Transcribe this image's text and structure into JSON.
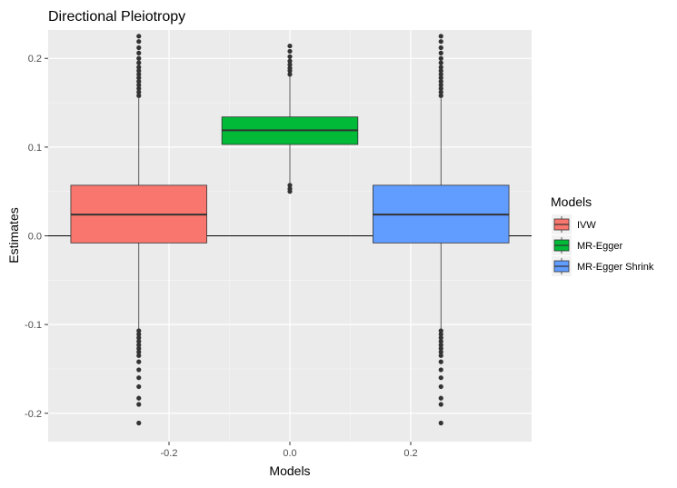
{
  "chart_data": {
    "type": "boxplot",
    "title": "Directional Pleiotropy",
    "xlabel": "Models",
    "ylabel": "Estimates",
    "xlim": [
      -0.4,
      0.4
    ],
    "ylim": [
      -0.232,
      0.232
    ],
    "x_ticks": [
      -0.2,
      0.0,
      0.2
    ],
    "x_tick_labels": [
      "-0.2",
      "0.0",
      "0.2"
    ],
    "y_ticks": [
      -0.2,
      -0.1,
      0.0,
      0.1,
      0.2
    ],
    "y_tick_labels": [
      "-0.2",
      "-0.1",
      "0.0",
      "0.1",
      "0.2"
    ],
    "reference_line_y": 0,
    "grid": true,
    "panel_background": "#EBEBEB",
    "legend": {
      "title": "Models",
      "position": "right",
      "entries": [
        "IVW",
        "MR-Egger",
        "MR-Egger Shrink"
      ]
    },
    "series": [
      {
        "name": "IVW",
        "x": -0.25,
        "width": 0.225,
        "color": "#F8766D",
        "q1": -0.008,
        "median": 0.024,
        "q3": 0.057,
        "whisker_low": -0.105,
        "whisker_high": 0.155,
        "outliers": [
          0.158,
          0.162,
          0.166,
          0.17,
          0.174,
          0.178,
          0.182,
          0.186,
          0.19,
          0.195,
          0.2,
          0.206,
          0.212,
          0.219,
          0.225,
          -0.107,
          -0.111,
          -0.115,
          -0.119,
          -0.123,
          -0.127,
          -0.131,
          -0.135,
          -0.142,
          -0.151,
          -0.16,
          -0.17,
          -0.183,
          -0.19,
          -0.211
        ]
      },
      {
        "name": "MR-Egger",
        "x": 0.0,
        "width": 0.225,
        "color": "#00BA38",
        "q1": 0.103,
        "median": 0.119,
        "q3": 0.134,
        "whisker_low": 0.058,
        "whisker_high": 0.18,
        "outliers": [
          0.182,
          0.186,
          0.189,
          0.193,
          0.197,
          0.202,
          0.208,
          0.214,
          0.057,
          0.053,
          0.05
        ]
      },
      {
        "name": "MR-Egger Shrink",
        "x": 0.25,
        "width": 0.225,
        "color": "#619CFF",
        "q1": -0.008,
        "median": 0.024,
        "q3": 0.057,
        "whisker_low": -0.105,
        "whisker_high": 0.155,
        "outliers": [
          0.158,
          0.162,
          0.166,
          0.17,
          0.174,
          0.178,
          0.182,
          0.186,
          0.19,
          0.195,
          0.2,
          0.206,
          0.212,
          0.219,
          0.225,
          -0.107,
          -0.111,
          -0.115,
          -0.119,
          -0.123,
          -0.127,
          -0.131,
          -0.135,
          -0.142,
          -0.151,
          -0.16,
          -0.17,
          -0.183,
          -0.19,
          -0.211
        ]
      }
    ]
  }
}
